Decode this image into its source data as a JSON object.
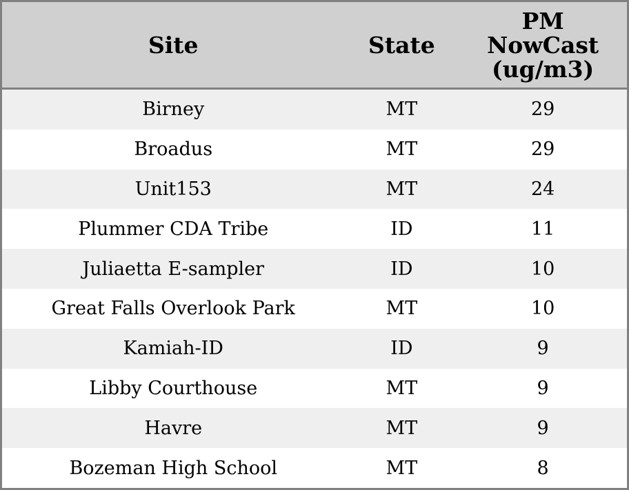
{
  "table": {
    "columns": [
      {
        "key": "site",
        "label": "Site"
      },
      {
        "key": "state",
        "label": "State"
      },
      {
        "key": "pm_nowcast",
        "label": "PM\nNowCast\n(ug/m3)"
      }
    ],
    "rows": [
      {
        "site": "Birney",
        "state": "MT",
        "pm_nowcast": 29
      },
      {
        "site": "Broadus",
        "state": "MT",
        "pm_nowcast": 29
      },
      {
        "site": "Unit153",
        "state": "MT",
        "pm_nowcast": 24
      },
      {
        "site": "Plummer CDA Tribe",
        "state": "ID",
        "pm_nowcast": 11
      },
      {
        "site": "Juliaetta E-sampler",
        "state": "ID",
        "pm_nowcast": 10
      },
      {
        "site": "Great Falls Overlook Park",
        "state": "MT",
        "pm_nowcast": 10
      },
      {
        "site": "Kamiah-ID",
        "state": "ID",
        "pm_nowcast": 9
      },
      {
        "site": "Libby Courthouse",
        "state": "MT",
        "pm_nowcast": 9
      },
      {
        "site": "Havre",
        "state": "MT",
        "pm_nowcast": 9
      },
      {
        "site": "Bozeman High School",
        "state": "MT",
        "pm_nowcast": 8
      }
    ]
  },
  "chart_data": {
    "type": "table",
    "title": "",
    "columns": [
      "Site",
      "State",
      "PM NowCast (ug/m3)"
    ],
    "categories": [
      "Birney",
      "Broadus",
      "Unit153",
      "Plummer CDA Tribe",
      "Juliaetta E-sampler",
      "Great Falls Overlook Park",
      "Kamiah-ID",
      "Libby Courthouse",
      "Havre",
      "Bozeman High School"
    ],
    "series": [
      {
        "name": "State",
        "values": [
          "MT",
          "MT",
          "MT",
          "ID",
          "ID",
          "MT",
          "ID",
          "MT",
          "MT",
          "MT"
        ]
      },
      {
        "name": "PM NowCast (ug/m3)",
        "values": [
          29,
          29,
          24,
          11,
          10,
          10,
          9,
          9,
          9,
          8
        ]
      }
    ],
    "layout": {
      "zebra_striping": true,
      "header_background": "#d0d0d0",
      "stripe_color": "#efefef",
      "border_color": "#808080"
    }
  },
  "colors": {
    "header_background": "#d0d0d0",
    "row_stripe": "#efefef",
    "row_plain": "#ffffff",
    "border": "#808080",
    "text": "#000000"
  }
}
